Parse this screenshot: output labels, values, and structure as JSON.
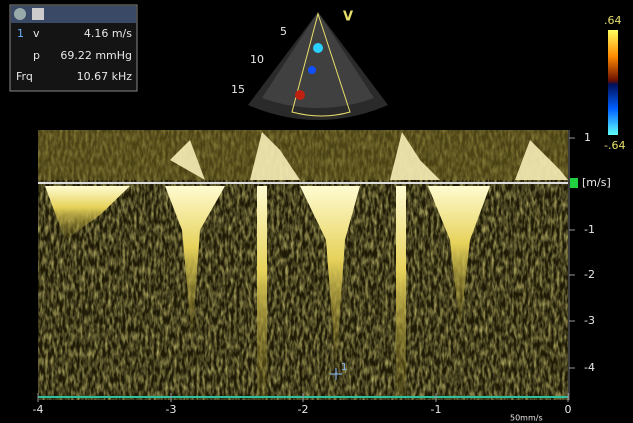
{
  "header": {
    "index": "1",
    "v_label": "v",
    "v_value": "4.16 m/s",
    "p_label": "p",
    "p_value": "69.22 mmHg",
    "frq_label": "Frq",
    "frq_value": "10.67 kHz"
  },
  "sector": {
    "mode": "V",
    "depths": [
      "5",
      "10",
      "15"
    ]
  },
  "color_bar": {
    "top": ".64",
    "bottom": "-.64"
  },
  "velocity_axis": {
    "labels": [
      "1",
      "-1",
      "-2",
      "-3",
      "-4"
    ],
    "unit": "[m/s]"
  },
  "time_axis": {
    "labels": [
      "-4",
      "-3",
      "-2",
      "-1",
      "0"
    ],
    "speed": "50mm/s"
  },
  "cursor": {
    "label": "1"
  }
}
